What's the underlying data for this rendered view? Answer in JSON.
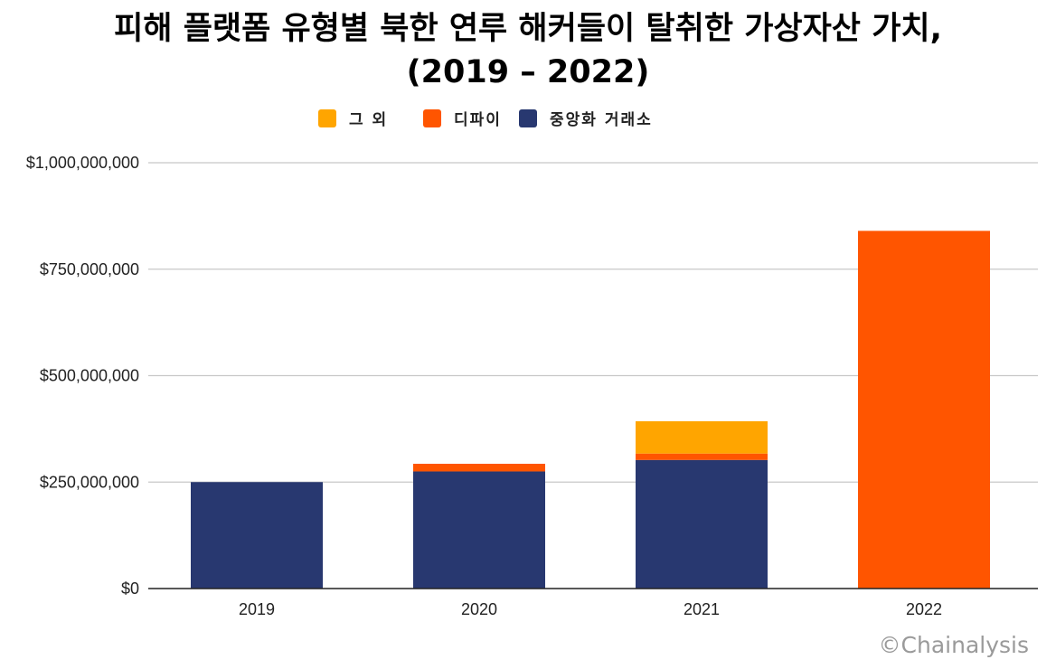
{
  "chart_data": {
    "type": "bar",
    "stacked": true,
    "title_line1": "피해 플랫폼 유형별 북한 연루 해커들이 탈취한 가상자산 가치,",
    "title_line2": "(2019 – 2022)",
    "categories": [
      "2019",
      "2020",
      "2021",
      "2022"
    ],
    "series": [
      {
        "name": "중앙화 거래소",
        "color": "#283870",
        "values": [
          250000000,
          275000000,
          302000000,
          0
        ]
      },
      {
        "name": "디파이",
        "color": "#FF5500",
        "values": [
          0,
          18000000,
          15000000,
          840000000
        ]
      },
      {
        "name": "그 외",
        "color": "#FFA500",
        "values": [
          0,
          0,
          76000000,
          0
        ]
      }
    ],
    "legend_order": [
      "그 외",
      "디파이",
      "중앙화 거래소"
    ],
    "legend_position": "top-center",
    "ylim": [
      0,
      1000000000
    ],
    "yticks": [
      0,
      250000000,
      500000000,
      750000000,
      1000000000
    ],
    "ytick_labels": [
      "$0",
      "$250,000,000",
      "$500,000,000",
      "$750,000,000",
      "$1,000,000,000"
    ],
    "xlabel": "",
    "ylabel": "",
    "grid": true
  },
  "legend": {
    "other": "그 외",
    "defi": "디파이",
    "cex": "중앙화 거래소"
  },
  "watermark": "©Chainalysis",
  "colors": {
    "cex": "#283870",
    "defi": "#FF5500",
    "other": "#FFA500",
    "grid": "#c8c8c8"
  }
}
